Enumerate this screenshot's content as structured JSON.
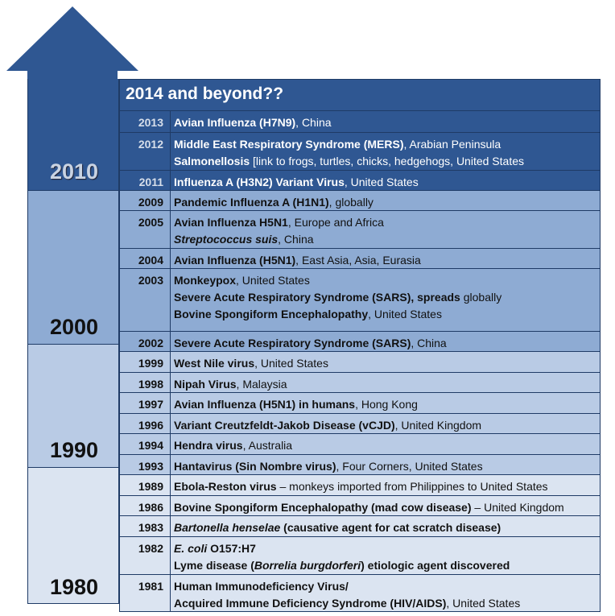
{
  "header": "2014 and beyond??",
  "decades": [
    "2010",
    "2000",
    "1990",
    "1980"
  ],
  "rows": [
    {
      "year": "2013",
      "lines": [
        [
          {
            "t": "Avian Influenza (H7N9)",
            "b": true
          },
          {
            "t": ", China"
          }
        ]
      ]
    },
    {
      "year": "2012",
      "lines": [
        [
          {
            "t": "Middle East Respiratory Syndrome (MERS)",
            "b": true
          },
          {
            "t": ", Arabian Peninsula"
          }
        ],
        [
          {
            "t": "Salmonellosis",
            "b": true
          },
          {
            "t": " [link to frogs, turtles, chicks, hedgehogs, United States"
          }
        ]
      ]
    },
    {
      "year": "2011",
      "lines": [
        [
          {
            "t": "Influenza A (H3N2) Variant Virus",
            "b": true
          },
          {
            "t": ", United States"
          }
        ]
      ]
    },
    {
      "year": "2009",
      "lines": [
        [
          {
            "t": "Pandemic Influenza A (H1N1)",
            "b": true
          },
          {
            "t": ", globally"
          }
        ]
      ]
    },
    {
      "year": "2005",
      "lines": [
        [
          {
            "t": "Avian Influenza H5N1",
            "b": true
          },
          {
            "t": ", Europe and Africa"
          }
        ],
        [
          {
            "t": "Streptococcus suis",
            "b": true,
            "i": true
          },
          {
            "t": ", China"
          }
        ]
      ]
    },
    {
      "year": "2004",
      "lines": [
        [
          {
            "t": "Avian Influenza (H5N1)",
            "b": true
          },
          {
            "t": ", East Asia, Asia, Eurasia"
          }
        ]
      ]
    },
    {
      "year": "2003",
      "lines": [
        [
          {
            "t": "Monkeypox",
            "b": true
          },
          {
            "t": ", United States"
          }
        ],
        [
          {
            "t": "Severe Acute Respiratory Syndrome (SARS), spreads",
            "b": true
          },
          {
            "t": " globally"
          }
        ],
        [
          {
            "t": "Bovine Spongiform Encephalopathy",
            "b": true
          },
          {
            "t": ", United States"
          }
        ]
      ]
    },
    {
      "year": "2002",
      "lines": [
        [
          {
            "t": "Severe Acute Respiratory Syndrome (SARS)",
            "b": true
          },
          {
            "t": ", China"
          }
        ]
      ]
    },
    {
      "year": "1999",
      "lines": [
        [
          {
            "t": "West Nile virus",
            "b": true
          },
          {
            "t": ", United States"
          }
        ]
      ]
    },
    {
      "year": "1998",
      "lines": [
        [
          {
            "t": "Nipah Virus",
            "b": true
          },
          {
            "t": ", Malaysia"
          }
        ]
      ]
    },
    {
      "year": "1997",
      "lines": [
        [
          {
            "t": "Avian Influenza (H5N1) in humans",
            "b": true
          },
          {
            "t": ", Hong Kong"
          }
        ]
      ]
    },
    {
      "year": "1996",
      "lines": [
        [
          {
            "t": "Variant Creutzfeldt-Jakob Disease (vCJD)",
            "b": true
          },
          {
            "t": ", United Kingdom"
          }
        ]
      ]
    },
    {
      "year": "1994",
      "lines": [
        [
          {
            "t": "Hendra virus",
            "b": true
          },
          {
            "t": ", Australia"
          }
        ]
      ]
    },
    {
      "year": "1993",
      "lines": [
        [
          {
            "t": "Hantavirus (Sin Nombre virus)",
            "b": true
          },
          {
            "t": ", Four Corners, United States"
          }
        ]
      ]
    },
    {
      "year": "1989",
      "lines": [
        [
          {
            "t": "Ebola-Reston virus",
            "b": true
          },
          {
            "t": " – monkeys imported from Philippines to United States"
          }
        ]
      ]
    },
    {
      "year": "1986",
      "lines": [
        [
          {
            "t": "Bovine Spongiform Encephalopathy (mad cow disease)",
            "b": true
          },
          {
            "t": " – United Kingdom"
          }
        ]
      ]
    },
    {
      "year": "1983",
      "lines": [
        [
          {
            "t": "Bartonella henselae",
            "b": true,
            "i": true
          },
          {
            "t": " (causative agent for cat scratch disease)",
            "b": true
          }
        ]
      ]
    },
    {
      "year": "1982",
      "lines": [
        [
          {
            "t": "E. coli",
            "b": true,
            "i": true
          },
          {
            "t": " O157:H7",
            "b": true
          }
        ],
        [
          {
            "t": "Lyme disease (",
            "b": true
          },
          {
            "t": "Borrelia burgdorferi",
            "b": true,
            "i": true
          },
          {
            "t": ") etiologic agent discovered",
            "b": true
          }
        ]
      ]
    },
    {
      "year": "1981",
      "lines": [
        [
          {
            "t": "Human Immunodeficiency Virus/",
            "b": true
          }
        ],
        [
          {
            "t": "Acquired Immune Deficiency Syndrome (HIV/AIDS)",
            "b": true
          },
          {
            "t": ", United States"
          }
        ]
      ]
    }
  ],
  "colors": {
    "dark_blue": "#2f5792",
    "mid_blue": "#8eabd3",
    "light_blue": "#b9cbe5",
    "pale_blue": "#dbe4f1",
    "border": "#1f3b66"
  }
}
